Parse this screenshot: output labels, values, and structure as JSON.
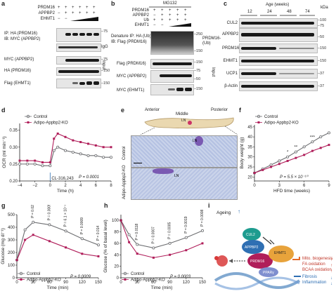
{
  "panels": {
    "a": "a",
    "b": "b",
    "c": "c",
    "d": "d",
    "e": "e",
    "f": "f",
    "g": "g",
    "h": "h",
    "i": "i"
  },
  "a": {
    "rows": [
      "PRDM16",
      "APPBP2",
      "EHMT1"
    ],
    "signs": [
      [
        "+",
        "+",
        "+",
        "+",
        "+",
        "+"
      ],
      [
        "−",
        "+",
        "+",
        "+",
        "+",
        "+"
      ],
      [
        "−",
        "−",
        "",
        "",
        "",
        ""
      ]
    ],
    "blots": [
      "IP: HA (PRDM16)\nIB: MYC (APPBP2)",
      "IgG",
      "MYC (APPBP2)",
      "HA (PRDM16)",
      "Flag (EHMT1)"
    ],
    "mw": [
      "–75",
      "–75",
      "–150",
      "–150"
    ],
    "input": "Input"
  },
  "b": {
    "header": "MG132",
    "rows": [
      "PRDM16",
      "APPBP2",
      "Ub",
      "EHMT1"
    ],
    "signs": [
      [
        "+",
        "+",
        "+",
        "+",
        "+"
      ],
      [
        "−",
        "+",
        "+",
        "+",
        "+"
      ],
      [
        "+",
        "+",
        "+",
        "+",
        "+"
      ],
      [
        "−",
        "−",
        "",
        "",
        ""
      ]
    ],
    "blots": [
      "Denature IP: HA (Ub)\nIB: Flag (PRDM16)",
      "Flag (PRDM16)",
      "MYC (APPBP2)",
      "MYC (EHMT1)"
    ],
    "side": "PRDM16-(Ub)",
    "mw": [
      "–250",
      "–150",
      "–150",
      "–75",
      "–50",
      "–150"
    ],
    "input": "Input"
  },
  "c": {
    "title": "Age (weeks)",
    "ages": [
      "12",
      "24",
      "48",
      "74"
    ],
    "kda": "kDa",
    "blots": [
      "CUL2",
      "APPBP2",
      "PRDM16",
      "EHMT1",
      "UCP1",
      "β-Actin"
    ],
    "mw": [
      "–100",
      "–75",
      "–50",
      "–150",
      "–150",
      "–37",
      "–37"
    ]
  },
  "d": {
    "legend": [
      "Control",
      "Adipo-Appbp2-KO"
    ],
    "xlabel": "Time (h)",
    "ylabel": "OCR (ml min⁻¹)",
    "annot": "CL-316,243",
    "p": "P = 0.0001",
    "xticks": [
      "−4",
      "−2",
      "0",
      "2",
      "4",
      "6",
      "8"
    ],
    "yticks": [
      "0.20",
      "0.25",
      "0.30",
      "0.35"
    ]
  },
  "e": {
    "labels": [
      "Anterior",
      "Middle",
      "Posterior"
    ],
    "ln": "LN",
    "rows": [
      "Control",
      "Adipo-Appbp2-KO"
    ]
  },
  "f": {
    "legend": [
      "Control",
      "Adipo-Appbp2-KO"
    ],
    "xlabel": "HFD time (weeks)",
    "ylabel": "Body weight (g)",
    "p": "P = 5.5 × 10⁻¹⁰",
    "stars": [
      "*",
      "**",
      "***"
    ],
    "xticks": [
      "0",
      "3",
      "6",
      "9"
    ],
    "yticks": [
      "20",
      "25",
      "30",
      "35",
      "40",
      "45"
    ]
  },
  "g": {
    "legend": [
      "Control",
      "Adipo-Appbp2-KO"
    ],
    "xlabel": "Time (min)",
    "ylabel": "Glucose (mg dl⁻¹)",
    "p": "P = 0.0009",
    "pvals": [
      "P = 0.0289",
      "P = 0.0005",
      "P = 6.1 × 10⁻⁵",
      "P = 0.0009",
      "P = 0.014"
    ],
    "xticks": [
      "0",
      "30",
      "60",
      "90",
      "120",
      "150"
    ],
    "yticks": [
      "0",
      "100",
      "200",
      "300",
      "400",
      "500"
    ]
  },
  "h": {
    "legend": [
      "Control",
      "Adipo-Appbp2-KO"
    ],
    "xlabel": "Time (min)",
    "ylabel": "Glucose (% of basal level)",
    "p": "P = 0.0003",
    "pvals": [
      "P = 0.0118",
      "P = 0.0007",
      "P = 0.0005",
      "P = 0.0019",
      "P = 0.0008"
    ],
    "xticks": [
      "0",
      "30",
      "60",
      "90",
      "120",
      "150"
    ],
    "yticks": [
      "0",
      "20",
      "40",
      "60",
      "80",
      "100"
    ]
  },
  "i": {
    "ageing": "Ageing",
    "nodes": [
      "CUL2",
      "APPBP2",
      "PRDM16",
      "EHMT1",
      "PPARγ"
    ],
    "outcomes_up": [
      "Mito. biogenesis",
      "FA oxidation",
      "BCAA oxidation"
    ],
    "outcomes_down": [
      "Fibrosis",
      "Inflammation"
    ]
  },
  "colors": {
    "control": "#6d6e71",
    "ko": "#b01e5a",
    "accent": "#e46b2a",
    "blue": "#2f6fb3"
  },
  "chart_data": [
    {
      "type": "line",
      "panel": "d",
      "x": [
        -4,
        -3,
        -2,
        -1,
        0,
        0.5,
        1,
        2,
        3,
        4,
        5,
        6,
        7,
        8
      ],
      "series": [
        {
          "name": "Control",
          "values": [
            0.25,
            0.25,
            0.25,
            0.245,
            0.245,
            0.29,
            0.3,
            0.29,
            0.285,
            0.28,
            0.275,
            0.275,
            0.27,
            0.27
          ]
        },
        {
          "name": "Adipo-Appbp2-KO",
          "values": [
            0.26,
            0.26,
            0.26,
            0.255,
            0.255,
            0.325,
            0.34,
            0.33,
            0.32,
            0.315,
            0.31,
            0.305,
            0.3,
            0.3
          ]
        }
      ],
      "xlim": [
        -4,
        8
      ],
      "ylim": [
        0.2,
        0.37
      ]
    },
    {
      "type": "line",
      "panel": "f",
      "x": [
        0,
        1,
        2,
        3,
        4,
        5,
        6,
        7,
        8,
        9
      ],
      "series": [
        {
          "name": "Control",
          "values": [
            22,
            24,
            26,
            28,
            30,
            32.5,
            35,
            37.5,
            40,
            42
          ]
        },
        {
          "name": "Adipo-Appbp2-KO",
          "values": [
            22,
            23.5,
            25,
            26.5,
            28,
            29.5,
            31,
            33,
            34.5,
            36
          ]
        }
      ],
      "xlim": [
        0,
        9
      ],
      "ylim": [
        18,
        46
      ]
    },
    {
      "type": "line",
      "panel": "g",
      "x": [
        0,
        15,
        30,
        60,
        90,
        120,
        150
      ],
      "series": [
        {
          "name": "Control",
          "values": [
            140,
            380,
            440,
            420,
            370,
            310,
            260
          ]
        },
        {
          "name": "Adipo-Appbp2-KO",
          "values": [
            140,
            300,
            340,
            290,
            240,
            190,
            170
          ]
        }
      ],
      "xlim": [
        0,
        150
      ],
      "ylim": [
        0,
        500
      ]
    },
    {
      "type": "line",
      "panel": "h",
      "x": [
        0,
        15,
        30,
        60,
        90,
        120,
        150
      ],
      "series": [
        {
          "name": "Control",
          "values": [
            100,
            75,
            58,
            52,
            60,
            70,
            82
          ]
        },
        {
          "name": "Adipo-Appbp2-KO",
          "values": [
            100,
            62,
            42,
            35,
            40,
            48,
            60
          ]
        }
      ],
      "xlim": [
        0,
        150
      ],
      "ylim": [
        0,
        110
      ]
    }
  ]
}
